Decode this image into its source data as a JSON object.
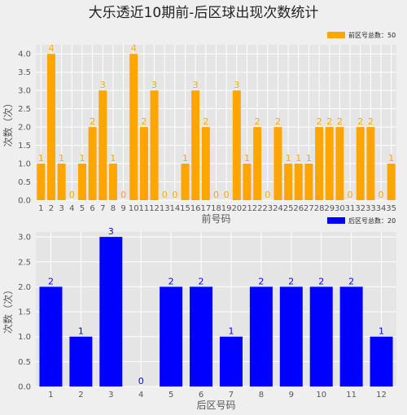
{
  "title": "大乐透近10期前-后区球出现次数统计",
  "chart_data": [
    {
      "type": "bar",
      "xlabel": "前号码",
      "ylabel": "次数（次）",
      "legend": "前区号总数：50",
      "legend_position": "top-right",
      "color": "#ffa500",
      "label_color": "#ffa500",
      "grid": true,
      "ylim": [
        0,
        4.25
      ],
      "yticks": [
        "0.0",
        "0.5",
        "1.0",
        "1.5",
        "2.0",
        "2.5",
        "3.0",
        "3.5",
        "4.0"
      ],
      "categories": [
        "1",
        "2",
        "3",
        "4",
        "5",
        "6",
        "7",
        "8",
        "9",
        "10",
        "11",
        "12",
        "13",
        "14",
        "15",
        "16",
        "17",
        "18",
        "19",
        "20",
        "21",
        "22",
        "23",
        "24",
        "25",
        "26",
        "27",
        "28",
        "29",
        "30",
        "31",
        "32",
        "33",
        "34",
        "35"
      ],
      "values": [
        1,
        4,
        1,
        0,
        1,
        2,
        3,
        1,
        0,
        4,
        2,
        3,
        0,
        0,
        1,
        3,
        2,
        0,
        0,
        3,
        1,
        2,
        0,
        2,
        1,
        1,
        1,
        2,
        2,
        2,
        0,
        2,
        2,
        0,
        1
      ]
    },
    {
      "type": "bar",
      "xlabel": "后区号码",
      "ylabel": "次数（次）",
      "legend": "后区号总数：20",
      "legend_position": "top-right",
      "color": "#0000ff",
      "label_color": "#0000ff",
      "grid": true,
      "ylim": [
        0,
        3.1
      ],
      "yticks": [
        "0.0",
        "0.5",
        "1.0",
        "1.5",
        "2.0",
        "2.5",
        "3.0"
      ],
      "categories": [
        "1",
        "2",
        "3",
        "4",
        "5",
        "6",
        "7",
        "8",
        "9",
        "10",
        "11",
        "12"
      ],
      "values": [
        2,
        1,
        3,
        0,
        2,
        2,
        1,
        2,
        2,
        2,
        2,
        1
      ]
    }
  ]
}
